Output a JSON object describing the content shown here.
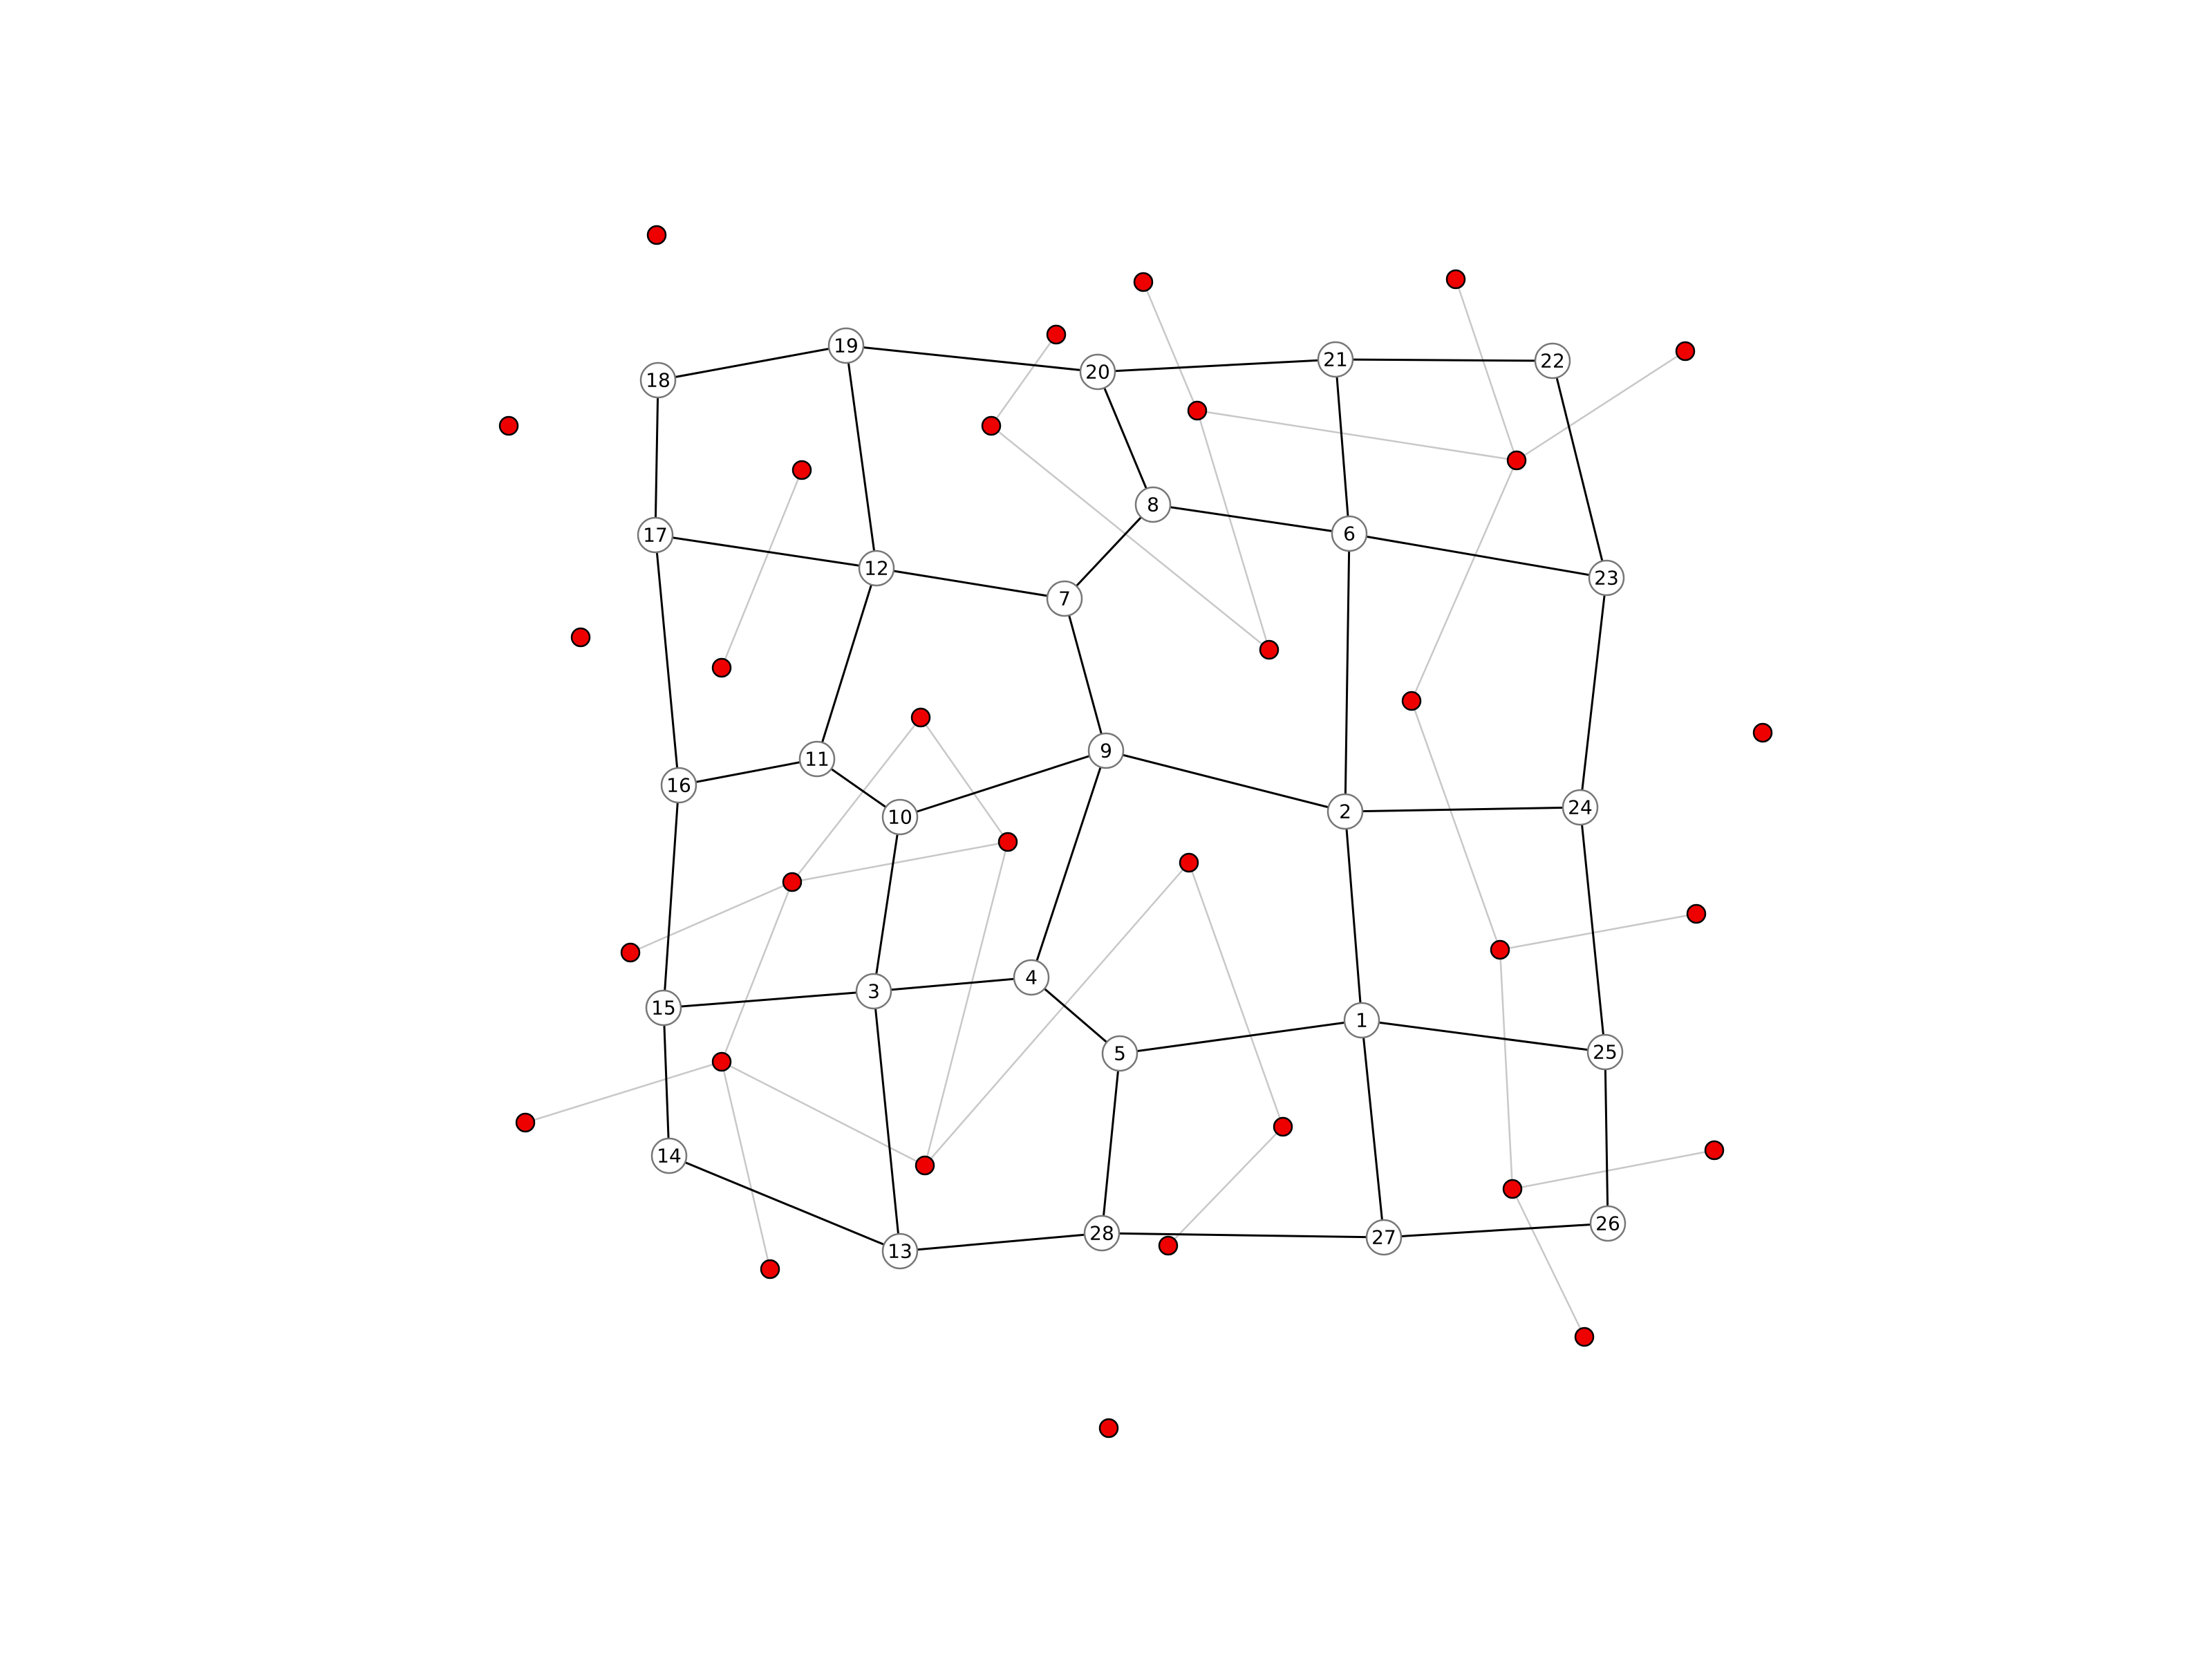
{
  "primal_nodes": [
    {
      "id": "n1",
      "label": "1"
    },
    {
      "id": "n2",
      "label": "2"
    },
    {
      "id": "n3",
      "label": "3"
    },
    {
      "id": "n4",
      "label": "4"
    },
    {
      "id": "n5",
      "label": "5"
    },
    {
      "id": "n6",
      "label": "6"
    },
    {
      "id": "n7",
      "label": "7"
    },
    {
      "id": "n8",
      "label": "8"
    },
    {
      "id": "n9",
      "label": "9"
    },
    {
      "id": "n10",
      "label": "10"
    },
    {
      "id": "n11",
      "label": "11"
    },
    {
      "id": "n12",
      "label": "12"
    },
    {
      "id": "n13",
      "label": "13"
    },
    {
      "id": "n14",
      "label": "14"
    },
    {
      "id": "n15",
      "label": "15"
    },
    {
      "id": "n16",
      "label": "16"
    },
    {
      "id": "n17",
      "label": "17"
    },
    {
      "id": "n18",
      "label": "18"
    },
    {
      "id": "n19",
      "label": "19"
    },
    {
      "id": "n20",
      "label": "20"
    },
    {
      "id": "n21",
      "label": "21"
    },
    {
      "id": "n22",
      "label": "22"
    },
    {
      "id": "n23",
      "label": "23"
    },
    {
      "id": "n24",
      "label": "24"
    },
    {
      "id": "n25",
      "label": "25"
    },
    {
      "id": "n26",
      "label": "26"
    },
    {
      "id": "n27",
      "label": "27"
    },
    {
      "id": "n28",
      "label": "28"
    }
  ],
  "primal_edges": [
    [
      "18",
      "19"
    ],
    [
      "19",
      "20"
    ],
    [
      "20",
      "21"
    ],
    [
      "21",
      "22"
    ],
    [
      "18",
      "17"
    ],
    [
      "19",
      "12"
    ],
    [
      "20",
      "8"
    ],
    [
      "21",
      "6"
    ],
    [
      "22",
      "23"
    ],
    [
      "8",
      "6"
    ],
    [
      "8",
      "7"
    ],
    [
      "6",
      "23"
    ],
    [
      "17",
      "12"
    ],
    [
      "12",
      "7"
    ],
    [
      "17",
      "16"
    ],
    [
      "12",
      "11"
    ],
    [
      "7",
      "9"
    ],
    [
      "6",
      "2"
    ],
    [
      "23",
      "24"
    ],
    [
      "16",
      "11"
    ],
    [
      "11",
      "10"
    ],
    [
      "10",
      "9"
    ],
    [
      "9",
      "2"
    ],
    [
      "2",
      "24"
    ],
    [
      "16",
      "15"
    ],
    [
      "10",
      "3"
    ],
    [
      "9",
      "4"
    ],
    [
      "2",
      "1"
    ],
    [
      "24",
      "25"
    ],
    [
      "15",
      "3"
    ],
    [
      "3",
      "4"
    ],
    [
      "4",
      "5"
    ],
    [
      "5",
      "1"
    ],
    [
      "1",
      "25"
    ],
    [
      "15",
      "14"
    ],
    [
      "3",
      "13"
    ],
    [
      "5",
      "28"
    ],
    [
      "1",
      "27"
    ],
    [
      "25",
      "26"
    ],
    [
      "14",
      "13"
    ],
    [
      "13",
      "28"
    ],
    [
      "28",
      "27"
    ],
    [
      "27",
      "26"
    ]
  ],
  "dual_edges": [
    [
      "d1",
      "d10"
    ],
    [
      "d10",
      "d2"
    ],
    [
      "d10",
      "d11"
    ],
    [
      "d11",
      "d2"
    ],
    [
      "d11",
      "d3"
    ],
    [
      "d2",
      "d4"
    ],
    [
      "d11",
      "d12"
    ],
    [
      "d12",
      "d3"
    ],
    [
      "d3",
      "d5"
    ],
    [
      "d3",
      "d13"
    ],
    [
      "d13",
      "d6"
    ],
    [
      "d13",
      "d14"
    ],
    [
      "d12",
      "d15"
    ],
    [
      "d15",
      "d4"
    ],
    [
      "d12",
      "d16"
    ],
    [
      "d16",
      "d17"
    ],
    [
      "d16",
      "d7"
    ],
    [
      "d16",
      "d18"
    ],
    [
      "d17",
      "d5"
    ],
    [
      "d17",
      "d18"
    ],
    [
      "d18",
      "d6"
    ],
    [
      "d17",
      "d19"
    ],
    [
      "d19",
      "d20"
    ],
    [
      "d19",
      "d8"
    ],
    [
      "d20",
      "d9"
    ],
    [
      "d17",
      "d21"
    ],
    [
      "d21",
      "d9"
    ],
    [
      "d21",
      "d22"
    ],
    [
      "d22",
      "d23"
    ],
    [
      "d22",
      "d24"
    ],
    [
      "d20",
      "d14"
    ]
  ]
}
